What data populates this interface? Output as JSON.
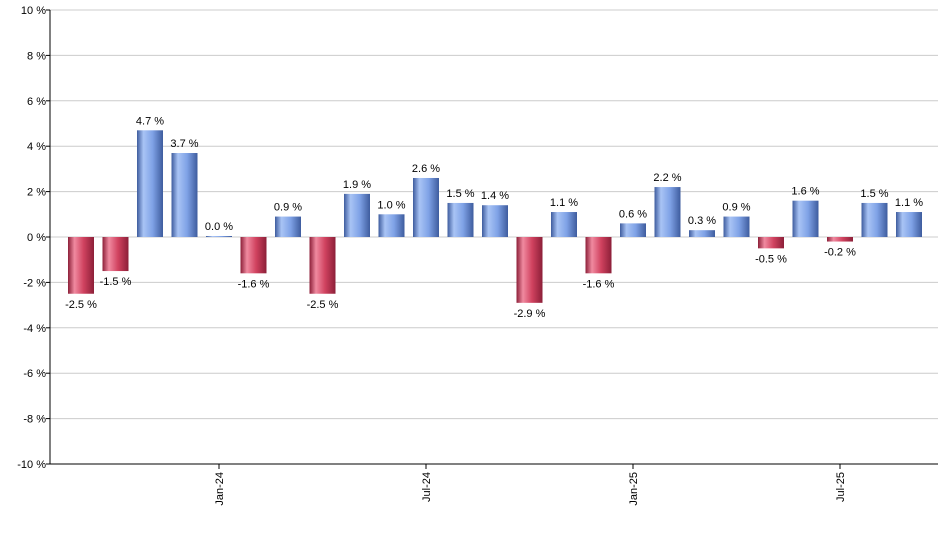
{
  "chart_data": {
    "type": "bar",
    "ylim": [
      -10,
      10
    ],
    "y_ticks": [
      10,
      8,
      6,
      4,
      2,
      0,
      -2,
      -4,
      -6,
      -8,
      -10
    ],
    "y_tick_labels": [
      "10 %",
      "8 %",
      "6 %",
      "4 %",
      "2 %",
      "0 %",
      "-2 %",
      "-4 %",
      "-6 %",
      "-8 %",
      "-10 %"
    ],
    "grid": true,
    "x_tick_labels": [
      {
        "label": "Jan-24",
        "index": 4
      },
      {
        "label": "Jul-24",
        "index": 10
      },
      {
        "label": "Jan-25",
        "index": 16
      },
      {
        "label": "Jul-25",
        "index": 22
      }
    ],
    "values": [
      -2.5,
      -1.5,
      4.7,
      3.7,
      0.0,
      -1.6,
      0.9,
      -2.5,
      1.9,
      1.0,
      2.6,
      1.5,
      1.4,
      -2.9,
      1.1,
      -1.6,
      0.6,
      2.2,
      0.3,
      0.9,
      -0.5,
      1.6,
      -0.2,
      1.5,
      1.1
    ],
    "labels": [
      "-2.5 %",
      "-1.5 %",
      "4.7 %",
      "3.7 %",
      "0.0 %",
      "-1.6 %",
      "0.9 %",
      "-2.5 %",
      "1.9 %",
      "1.0 %",
      "2.6 %",
      "1.5 %",
      "1.4 %",
      "-2.9 %",
      "1.1 %",
      "-1.6 %",
      "0.6 %",
      "2.2 %",
      "0.3 %",
      "0.9 %",
      "-0.5 %",
      "1.6 %",
      "-0.2 %",
      "1.5 %",
      "1.1 %"
    ],
    "colors": {
      "positive_light": "#a9c4f5",
      "positive_mid": "#6f93dc",
      "positive_dark": "#3e5c9e",
      "negative_light": "#f08aa0",
      "negative_mid": "#d0425f",
      "negative_dark": "#8c1f38",
      "grid": "#cccccc",
      "axis": "#000000"
    }
  }
}
